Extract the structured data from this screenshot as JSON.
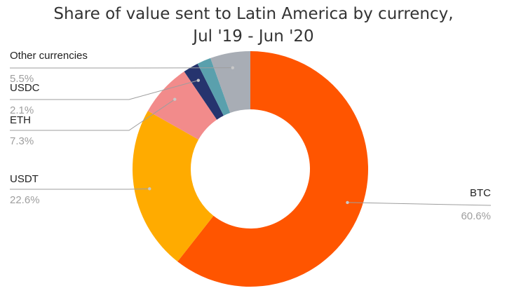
{
  "chart_data": {
    "type": "pie",
    "donut": true,
    "title_lines": [
      "Share of value sent to Latin America by currency,",
      "Jul '19 - Jun '20"
    ],
    "slices": [
      {
        "name": "BTC",
        "value": 60.6,
        "label": "60.6%",
        "color": "#ff5500"
      },
      {
        "name": "USDT",
        "value": 22.6,
        "label": "22.6%",
        "color": "#ffab00"
      },
      {
        "name": "ETH",
        "value": 7.3,
        "label": "7.3%",
        "color": "#f28b8b"
      },
      {
        "name": "USDC",
        "value": 2.1,
        "label": "2.1%",
        "color": "#26346e"
      },
      {
        "name": "",
        "value": 1.9,
        "label": "",
        "color": "#5aa0ad"
      },
      {
        "name": "Other currencies",
        "value": 5.5,
        "label": "5.5%",
        "color": "#a8adb5"
      }
    ]
  }
}
